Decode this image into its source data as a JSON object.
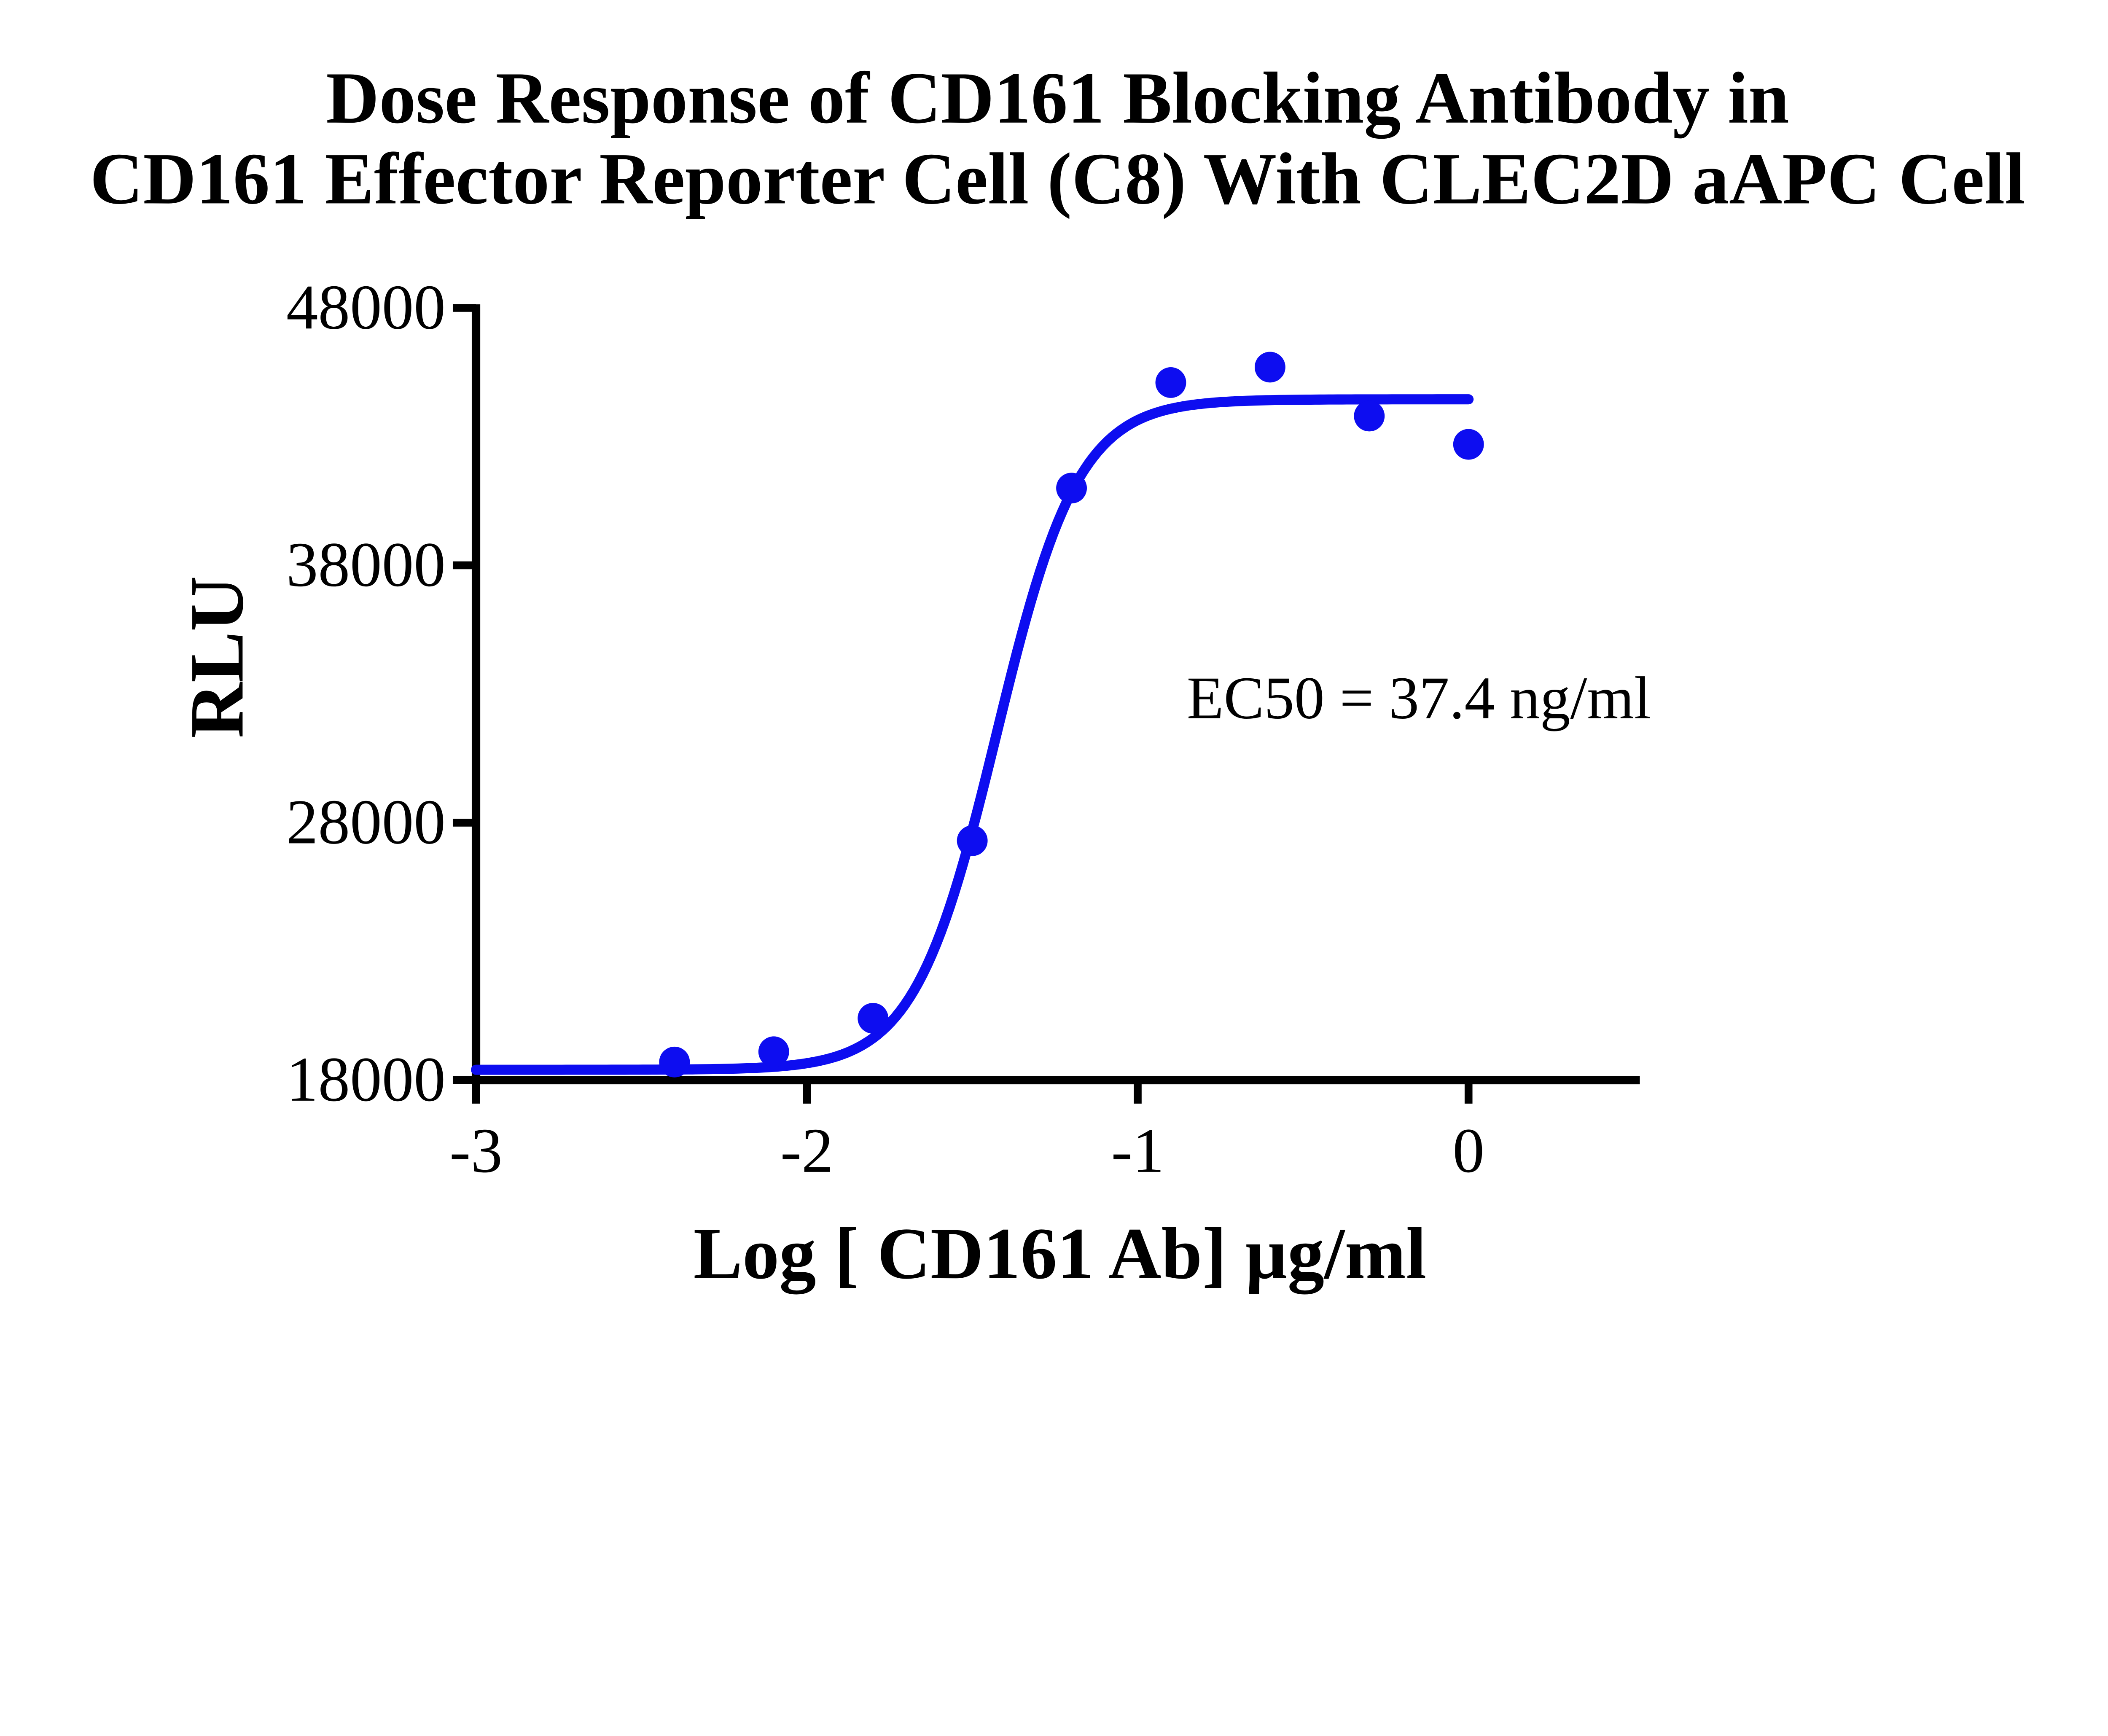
{
  "title": {
    "line1": "Dose Response of CD161 Blocking Antibody in",
    "line2": "CD161 Effector Reporter Cell (C8) With CLEC2D aAPC Cell"
  },
  "colors": {
    "curve_blue": "#0d0df0",
    "axis_black": "#000000",
    "background": "#ffffff"
  },
  "chart_data": {
    "type": "scatter",
    "title": "Dose Response of CD161 Blocking Antibody in CD161 Effector Reporter Cell (C8) With CLEC2D aAPC Cell",
    "xlabel": "Log [ CD161 Ab] µg/ml",
    "ylabel": "RLU",
    "x": [
      -2.4,
      -2.1,
      -1.8,
      -1.5,
      -1.2,
      -0.9,
      -0.6,
      -0.3,
      0.0
    ],
    "y": [
      18700,
      19100,
      20400,
      27300,
      41000,
      45100,
      45700,
      43800,
      42700
    ],
    "x_ticks": [
      -3,
      -2,
      -1,
      0
    ],
    "x_tick_labels": [
      "-3",
      "-2",
      "-1",
      "0"
    ],
    "y_ticks": [
      18000,
      28000,
      38000,
      48000
    ],
    "y_tick_labels": [
      "18000",
      "28000",
      "38000",
      "48000"
    ],
    "xlim": [
      -3,
      0.52
    ],
    "ylim": [
      18000,
      48000
    ],
    "grid": false,
    "legend": "none",
    "annotation": "EC50 = 37.4 ng/ml",
    "fit_curve": {
      "model": "four-parameter logistic (sigmoid dose-response)",
      "bottom": 18400,
      "top": 44450,
      "log_ec50": -1.427,
      "hill_slope": 3.5,
      "x_start": -3.0,
      "x_end": 0.0
    },
    "marker_color": "#0d0df0",
    "curve_color": "#0d0df0"
  }
}
